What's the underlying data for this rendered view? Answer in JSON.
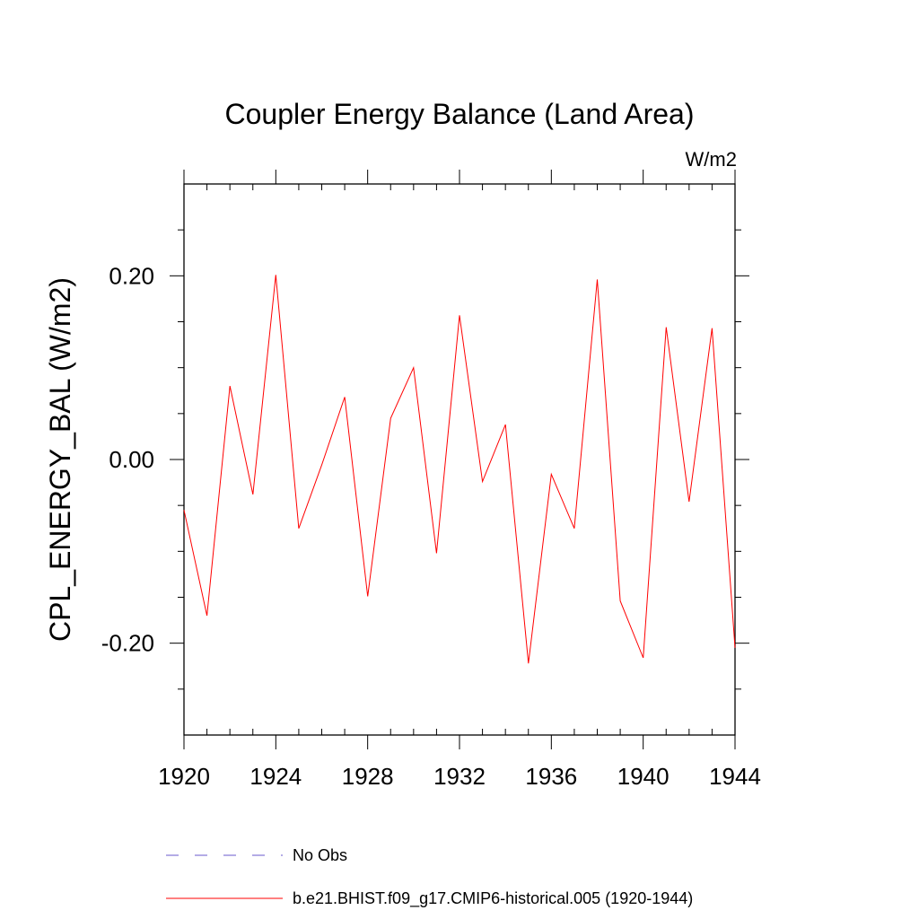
{
  "chart_data": {
    "type": "line",
    "title": "Coupler Energy Balance (Land Area)",
    "units_label": "W/m2",
    "ylabel": "CPL_ENERGY_BAL  (W/m2)",
    "xlabel": "",
    "xlim": [
      1920,
      1944
    ],
    "ylim": [
      -0.3,
      0.3
    ],
    "x_ticks": [
      1920,
      1924,
      1928,
      1932,
      1936,
      1940,
      1944
    ],
    "x_tick_labels": [
      "1920",
      "1924",
      "1928",
      "1932",
      "1936",
      "1940",
      "1944"
    ],
    "x_minor_step": 1,
    "y_ticks": [
      -0.2,
      0.0,
      0.2
    ],
    "y_tick_labels": [
      "-0.20",
      "0.00",
      "0.20"
    ],
    "y_minor_step": 0.05,
    "grid": false,
    "series": [
      {
        "name": "b.e21.BHIST.f09_g17.CMIP6-historical.005 (1920-1944)",
        "color": "#ff0000",
        "style": "solid",
        "x": [
          1920,
          1921,
          1922,
          1923,
          1924,
          1925,
          1926,
          1927,
          1928,
          1929,
          1930,
          1931,
          1932,
          1933,
          1934,
          1935,
          1936,
          1937,
          1938,
          1939,
          1940,
          1941,
          1942,
          1943,
          1944
        ],
        "values": [
          -0.055,
          -0.17,
          0.08,
          -0.038,
          0.201,
          -0.075,
          -0.006,
          0.068,
          -0.149,
          0.045,
          0.1,
          -0.102,
          0.157,
          -0.024,
          0.038,
          -0.222,
          -0.016,
          -0.075,
          0.196,
          -0.154,
          -0.216,
          0.144,
          -0.046,
          0.143,
          -0.205
        ]
      }
    ],
    "legend": [
      {
        "label": "No Obs",
        "color": "#6a5acd",
        "style": "dashed"
      },
      {
        "label": "b.e21.BHIST.f09_g17.CMIP6-historical.005 (1920-1944)",
        "color": "#ff0000",
        "style": "solid"
      }
    ]
  }
}
